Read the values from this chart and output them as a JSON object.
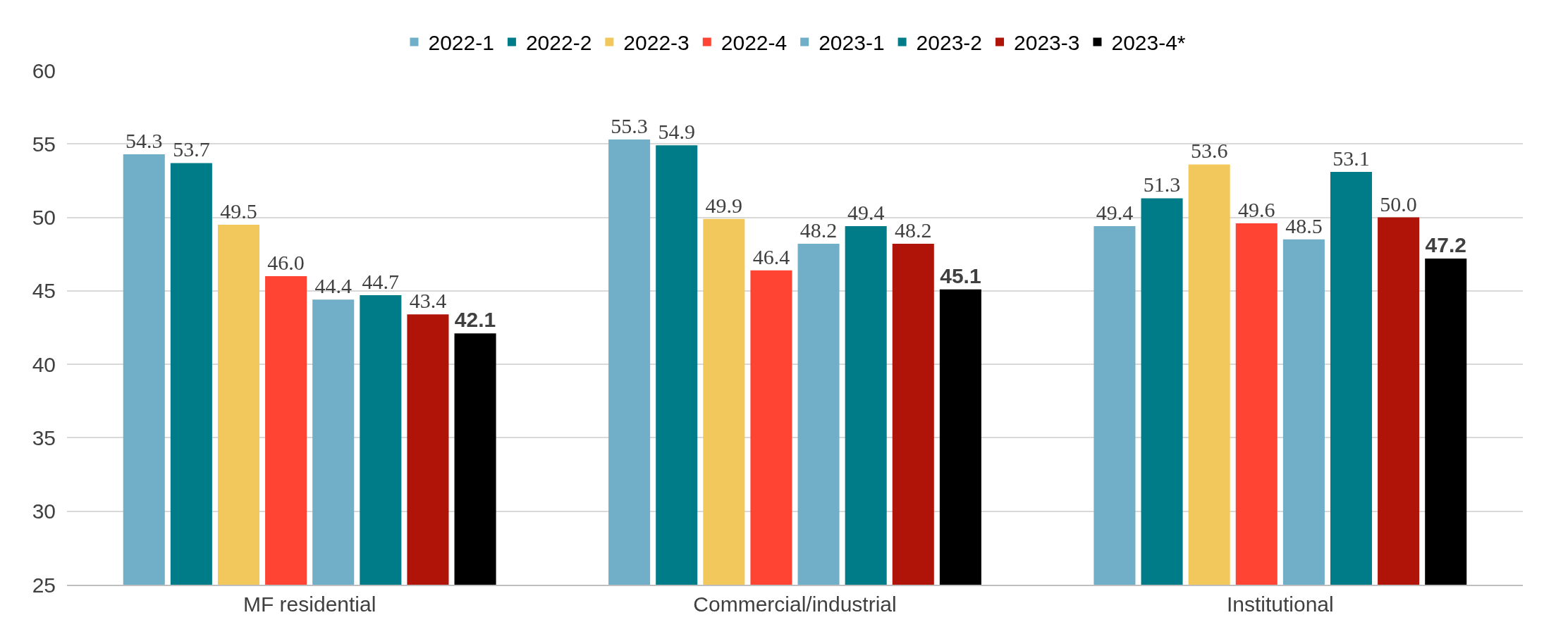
{
  "chart_data": {
    "type": "bar",
    "categories": [
      "MF residential",
      "Commercial/industrial",
      "Institutional"
    ],
    "series": [
      {
        "name": "2022-1",
        "color": "#71afc8",
        "values": [
          54.3,
          55.3,
          49.4
        ],
        "value_labels": [
          "54.3",
          "55.3",
          "49.4"
        ]
      },
      {
        "name": "2022-2",
        "color": "#007c89",
        "values": [
          53.7,
          54.9,
          51.3
        ],
        "value_labels": [
          "53.7",
          "54.9",
          "51.3"
        ]
      },
      {
        "name": "2022-3",
        "color": "#f2c75c",
        "values": [
          49.5,
          49.9,
          53.6
        ],
        "value_labels": [
          "49.5",
          "49.9",
          "53.6"
        ]
      },
      {
        "name": "2022-4",
        "color": "#ff4433",
        "values": [
          46.0,
          46.4,
          49.6
        ],
        "value_labels": [
          "46.0",
          "46.4",
          "49.6"
        ]
      },
      {
        "name": "2023-1",
        "color": "#71afc8",
        "values": [
          44.4,
          48.2,
          48.5
        ],
        "value_labels": [
          "44.4",
          "48.2",
          "48.5"
        ]
      },
      {
        "name": "2023-2",
        "color": "#007c89",
        "values": [
          44.7,
          49.4,
          53.1
        ],
        "value_labels": [
          "44.7",
          "49.4",
          "53.1"
        ]
      },
      {
        "name": "2023-3",
        "color": "#b01408",
        "values": [
          43.4,
          48.2,
          50.0
        ],
        "value_labels": [
          "43.4",
          "48.2",
          "50.0"
        ]
      },
      {
        "name": "2023-4*",
        "color": "#000000",
        "values": [
          42.1,
          45.1,
          47.2
        ],
        "value_labels": [
          "42.1",
          "45.1",
          "47.2"
        ]
      }
    ],
    "ylim": [
      25,
      60
    ],
    "yticks": [
      25,
      30,
      35,
      40,
      45,
      50,
      55,
      60
    ],
    "grid": "y",
    "legend": "top"
  }
}
